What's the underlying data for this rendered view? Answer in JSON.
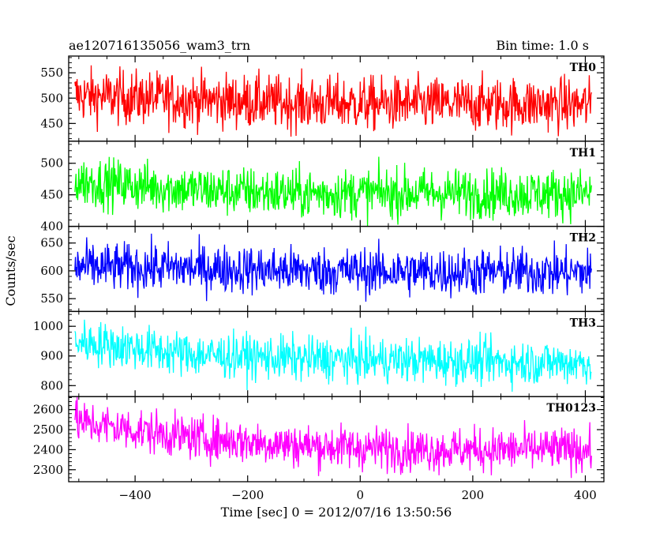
{
  "header": {
    "title": "ae120716135056_wam3_trn",
    "bin_time": "Bin time: 1.0 s"
  },
  "chart_data": {
    "type": "line",
    "xlabel": "Time [sec] 0 = 2012/07/16 13:50:56",
    "ylabel": "Counts/sec",
    "xlim": [
      -518,
      433
    ],
    "x_ticks": [
      -400,
      -200,
      0,
      200,
      400
    ],
    "x_range_data": [
      -507,
      411
    ],
    "bin_time": 1.0,
    "panels": [
      {
        "name": "TH0",
        "color": "#ff0000",
        "ylim": [
          415,
          583
        ],
        "yticks": [
          450,
          500,
          550
        ],
        "trend": [
          [
            -507,
            505
          ],
          [
            -300,
            497
          ],
          [
            -100,
            490
          ],
          [
            100,
            488
          ],
          [
            300,
            488
          ],
          [
            411,
            486
          ]
        ],
        "noise": 27,
        "peak_range": [
          425,
          590
        ]
      },
      {
        "name": "TH1",
        "color": "#00ff00",
        "ylim": [
          400,
          535
        ],
        "yticks": [
          400,
          450,
          500
        ],
        "trend": [
          [
            -507,
            472
          ],
          [
            -300,
            458
          ],
          [
            -100,
            452
          ],
          [
            100,
            453
          ],
          [
            300,
            452
          ],
          [
            411,
            452
          ]
        ],
        "noise": 20,
        "peak_range": [
          415,
          530
        ]
      },
      {
        "name": "TH2",
        "color": "#0000ff",
        "ylim": [
          527,
          680
        ],
        "yticks": [
          550,
          600,
          650
        ],
        "trend": [
          [
            -507,
            607
          ],
          [
            -300,
            605
          ],
          [
            -100,
            600
          ],
          [
            100,
            598
          ],
          [
            300,
            598
          ],
          [
            411,
            597
          ]
        ],
        "noise": 22,
        "peak_range": [
          540,
          675
        ]
      },
      {
        "name": "TH3",
        "color": "#00ffff",
        "ylim": [
          763,
          1050
        ],
        "yticks": [
          800,
          900,
          1000
        ],
        "trend": [
          [
            -507,
            950
          ],
          [
            -300,
            905
          ],
          [
            -100,
            890
          ],
          [
            100,
            885
          ],
          [
            300,
            878
          ],
          [
            411,
            878
          ]
        ],
        "noise": 38,
        "peak_range": [
          780,
          1050
        ]
      },
      {
        "name": "TH0123",
        "color": "#ff00ff",
        "ylim": [
          2240,
          2665
        ],
        "yticks": [
          2300,
          2400,
          2500,
          2600
        ],
        "trend": [
          [
            -507,
            2540
          ],
          [
            -300,
            2460
          ],
          [
            -100,
            2420
          ],
          [
            100,
            2400
          ],
          [
            300,
            2400
          ],
          [
            411,
            2400
          ]
        ],
        "noise": 55,
        "peak_range": [
          2260,
          2665
        ]
      }
    ]
  }
}
